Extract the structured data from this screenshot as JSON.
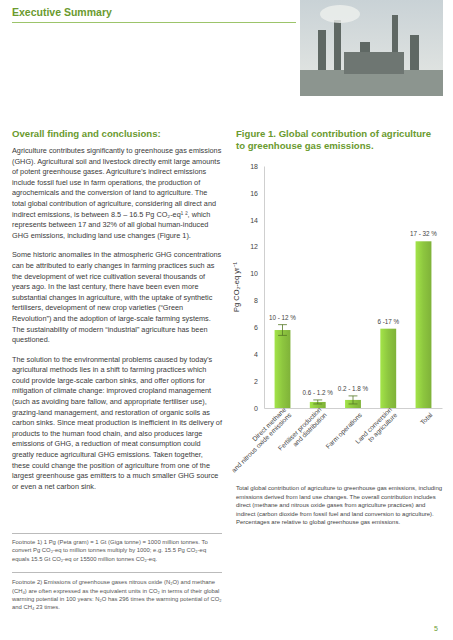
{
  "header": "Executive Summary",
  "heading": "Overall finding and conclusions:",
  "paragraphs": [
    "Agriculture contributes significantly to greenhouse gas emissions (GHG). Agricultural soil and livestock directly emit large amounts of potent greenhouse gases. Agriculture’s indirect emissions include fossil fuel use in farm operations, the production of agrochemicals and the conversion of land to agriculture. The total global contribution of agriculture, considering all direct and indirect emissions, is between 8.5 – 16.5 Pg CO₂-eq¹ ², which represents between 17 and 32% of all global human-induced GHG emissions, including land use changes (Figure 1).",
    "Some historic anomalies in the atmospheric GHG concentrations can be attributed to early changes in farming practices such as the development of wet rice cultivation several thousands of years ago. In the last century, there have been even more substantial changes in agriculture, with the uptake of synthetic fertilisers, development of new crop varieties (“Green Revolution”) and the adoption of large-scale farming systems. The sustainability of modern “industrial” agriculture has been questioned.",
    "The solution to the environmental problems caused by today’s agricultural methods lies in a shift to farming practices which could provide large-scale carbon sinks, and offer options for mitigation of climate change: improved cropland management (such as avoiding bare fallow, and appropriate fertiliser use), grazing-land management, and restoration of organic soils as carbon sinks. Since meat production is inefficient in its delivery of products to the human food chain, and also produces large emissions of GHG, a reduction of meat consumption could greatly reduce agricultural GHG emissions. Taken together, these could change the position of agriculture from one of the largest greenhouse gas emitters to a much smaller GHG source or even a net carbon sink."
  ],
  "figure_title": "Figure 1. Global contribution of agriculture to greenhouse gas emissions.",
  "chart_data": {
    "type": "bar",
    "y_label": "Pg CO₂-eq yr⁻¹",
    "categories": [
      "Direct methane\nand nitrous oxide emissions",
      "Fertiliser production\nand distribution",
      "Farm operations",
      "Land conversion\nto agriculture",
      "Total"
    ],
    "values": [
      5.8,
      0.45,
      0.6,
      5.9,
      12.4
    ],
    "errors": [
      0.4,
      0.15,
      0.3,
      null,
      null
    ],
    "annotations": [
      "10 - 12 %",
      "0.6 - 1.2 %",
      "0.2 - 1.8 %",
      "6 -17 %",
      "17 - 32 %"
    ],
    "color": "#8dc63f",
    "ylim": [
      0,
      18
    ],
    "yticks": [
      0,
      2,
      4,
      6,
      8,
      10,
      12,
      14,
      16,
      18
    ]
  },
  "caption": "Total global contribution of agriculture to greenhouse gas emissions, including emissions derived from land use changes. The overall contribution includes direct (methane and nitrous oxide gases from agriculture practices) and indirect (carbon dioxide from fossil fuel and land conversion to agriculture). Percentages are relative to global greenhouse gas emissions.",
  "footnotes": [
    "Footnote 1) 1 Pg (Peta gram) = 1 Gt (Giga tonne) = 1000 million tonnes. To convert Pg CO₂-eq to million tonnes multiply by 1000; e.g. 15.5 Pg CO₂-eq equals 15.5 Gt CO₂-eq or 15500 million tonnes CO₂-eq.",
    "Footnote 2) Emissions of greenhouse gases nitrous oxide (N₂O) and methane (CH₄) are often expressed as the equivalent units in CO₂ in terms of their global warming potential in 100 years: N₂O has 296 times the warming potential of CO₂ and CH₄ 23 times."
  ],
  "page_number": 5
}
